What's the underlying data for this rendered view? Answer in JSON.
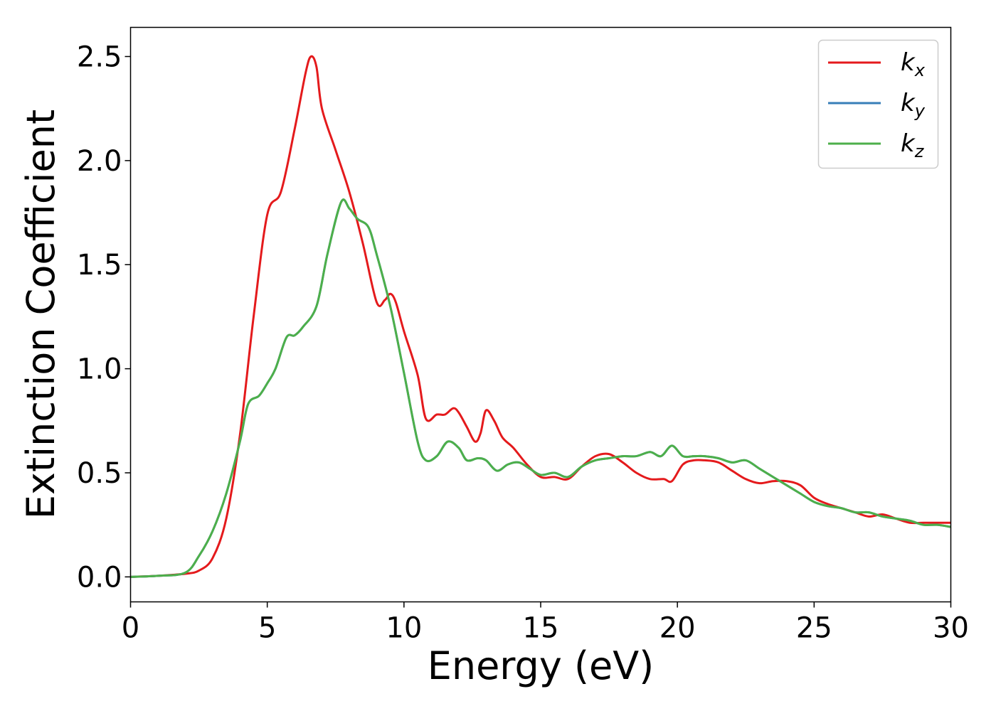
{
  "chart_data": {
    "type": "line",
    "xlabel": "Energy (eV)",
    "ylabel": "Extinction Coefficient",
    "xlim": [
      0,
      30
    ],
    "ylim": [
      -0.12,
      2.64
    ],
    "xticks": [
      0,
      5,
      10,
      15,
      20,
      25,
      30
    ],
    "xtick_labels": [
      "0",
      "5",
      "10",
      "15",
      "20",
      "25",
      "30"
    ],
    "yticks": [
      0.0,
      0.5,
      1.0,
      1.5,
      2.0,
      2.5
    ],
    "ytick_labels": [
      "0.0",
      "0.5",
      "1.0",
      "1.5",
      "2.0",
      "2.5"
    ],
    "grid": false,
    "legend_position": "top-right",
    "series": [
      {
        "name": "k_x",
        "label_base": "k",
        "label_sub": "x",
        "color": "#e41a1c",
        "x": [
          0,
          1,
          2,
          2.5,
          3,
          3.5,
          4,
          4.5,
          5,
          5.5,
          6,
          6.4,
          6.6,
          6.8,
          7,
          7.5,
          8,
          8.5,
          9,
          9.3,
          9.5,
          9.7,
          10,
          10.5,
          10.8,
          11.2,
          11.5,
          11.8,
          12,
          12.3,
          12.6,
          12.8,
          13,
          13.3,
          13.6,
          14,
          14.5,
          15,
          15.5,
          16,
          16.5,
          17,
          17.5,
          18,
          18.5,
          19,
          19.5,
          19.8,
          20.2,
          20.6,
          21,
          21.5,
          22,
          22.5,
          23,
          23.5,
          24,
          24.5,
          25,
          25.5,
          26,
          26.5,
          27,
          27.5,
          28,
          28.5,
          29,
          29.5,
          30
        ],
        "y": [
          0,
          0.005,
          0.015,
          0.03,
          0.09,
          0.28,
          0.68,
          1.25,
          1.74,
          1.85,
          2.15,
          2.42,
          2.5,
          2.45,
          2.25,
          2.05,
          1.85,
          1.6,
          1.32,
          1.33,
          1.36,
          1.32,
          1.18,
          0.97,
          0.76,
          0.78,
          0.78,
          0.81,
          0.79,
          0.72,
          0.65,
          0.69,
          0.8,
          0.75,
          0.67,
          0.62,
          0.54,
          0.48,
          0.48,
          0.47,
          0.53,
          0.58,
          0.59,
          0.55,
          0.5,
          0.47,
          0.47,
          0.46,
          0.54,
          0.56,
          0.56,
          0.55,
          0.51,
          0.47,
          0.45,
          0.46,
          0.46,
          0.44,
          0.38,
          0.35,
          0.33,
          0.31,
          0.29,
          0.3,
          0.28,
          0.26,
          0.26,
          0.26,
          0.26
        ]
      },
      {
        "name": "k_y",
        "label_base": "k",
        "label_sub": "y",
        "color": "#377eb8",
        "x": [
          0,
          1,
          2,
          2.5,
          3,
          3.5,
          4,
          4.3,
          4.7,
          5,
          5.3,
          5.7,
          6,
          6.3,
          6.8,
          7.2,
          7.7,
          8,
          8.3,
          8.7,
          9,
          9.5,
          10,
          10.5,
          10.8,
          11.2,
          11.6,
          12,
          12.3,
          12.7,
          13,
          13.4,
          13.8,
          14.2,
          14.6,
          15,
          15.5,
          16,
          16.5,
          17,
          17.5,
          18,
          18.5,
          19,
          19.4,
          19.8,
          20.2,
          20.6,
          21,
          21.5,
          22,
          22.5,
          23,
          23.5,
          24,
          24.5,
          25,
          25.5,
          26,
          26.5,
          27,
          27.5,
          28,
          28.5,
          29,
          29.5,
          30
        ],
        "y": [
          0,
          0.005,
          0.02,
          0.1,
          0.22,
          0.4,
          0.65,
          0.83,
          0.87,
          0.93,
          1.0,
          1.15,
          1.16,
          1.2,
          1.3,
          1.55,
          1.8,
          1.77,
          1.72,
          1.68,
          1.55,
          1.3,
          0.98,
          0.65,
          0.56,
          0.58,
          0.65,
          0.62,
          0.56,
          0.57,
          0.56,
          0.51,
          0.54,
          0.55,
          0.52,
          0.49,
          0.5,
          0.48,
          0.53,
          0.56,
          0.57,
          0.58,
          0.58,
          0.6,
          0.58,
          0.63,
          0.58,
          0.58,
          0.58,
          0.57,
          0.55,
          0.56,
          0.52,
          0.48,
          0.44,
          0.4,
          0.36,
          0.34,
          0.33,
          0.31,
          0.31,
          0.29,
          0.28,
          0.27,
          0.25,
          0.25,
          0.24
        ]
      },
      {
        "name": "k_z",
        "label_base": "k",
        "label_sub": "z",
        "color": "#4daf4a",
        "x": [
          0,
          1,
          2,
          2.5,
          3,
          3.5,
          4,
          4.3,
          4.7,
          5,
          5.3,
          5.7,
          6,
          6.3,
          6.8,
          7.2,
          7.7,
          8,
          8.3,
          8.7,
          9,
          9.5,
          10,
          10.5,
          10.8,
          11.2,
          11.6,
          12,
          12.3,
          12.7,
          13,
          13.4,
          13.8,
          14.2,
          14.6,
          15,
          15.5,
          16,
          16.5,
          17,
          17.5,
          18,
          18.5,
          19,
          19.4,
          19.8,
          20.2,
          20.6,
          21,
          21.5,
          22,
          22.5,
          23,
          23.5,
          24,
          24.5,
          25,
          25.5,
          26,
          26.5,
          27,
          27.5,
          28,
          28.5,
          29,
          29.5,
          30
        ],
        "y": [
          0,
          0.005,
          0.02,
          0.1,
          0.22,
          0.4,
          0.65,
          0.83,
          0.87,
          0.93,
          1.0,
          1.15,
          1.16,
          1.2,
          1.3,
          1.55,
          1.8,
          1.77,
          1.72,
          1.68,
          1.55,
          1.3,
          0.98,
          0.65,
          0.56,
          0.58,
          0.65,
          0.62,
          0.56,
          0.57,
          0.56,
          0.51,
          0.54,
          0.55,
          0.52,
          0.49,
          0.5,
          0.48,
          0.53,
          0.56,
          0.57,
          0.58,
          0.58,
          0.6,
          0.58,
          0.63,
          0.58,
          0.58,
          0.58,
          0.57,
          0.55,
          0.56,
          0.52,
          0.48,
          0.44,
          0.4,
          0.36,
          0.34,
          0.33,
          0.31,
          0.31,
          0.29,
          0.28,
          0.27,
          0.25,
          0.25,
          0.24
        ]
      }
    ]
  }
}
